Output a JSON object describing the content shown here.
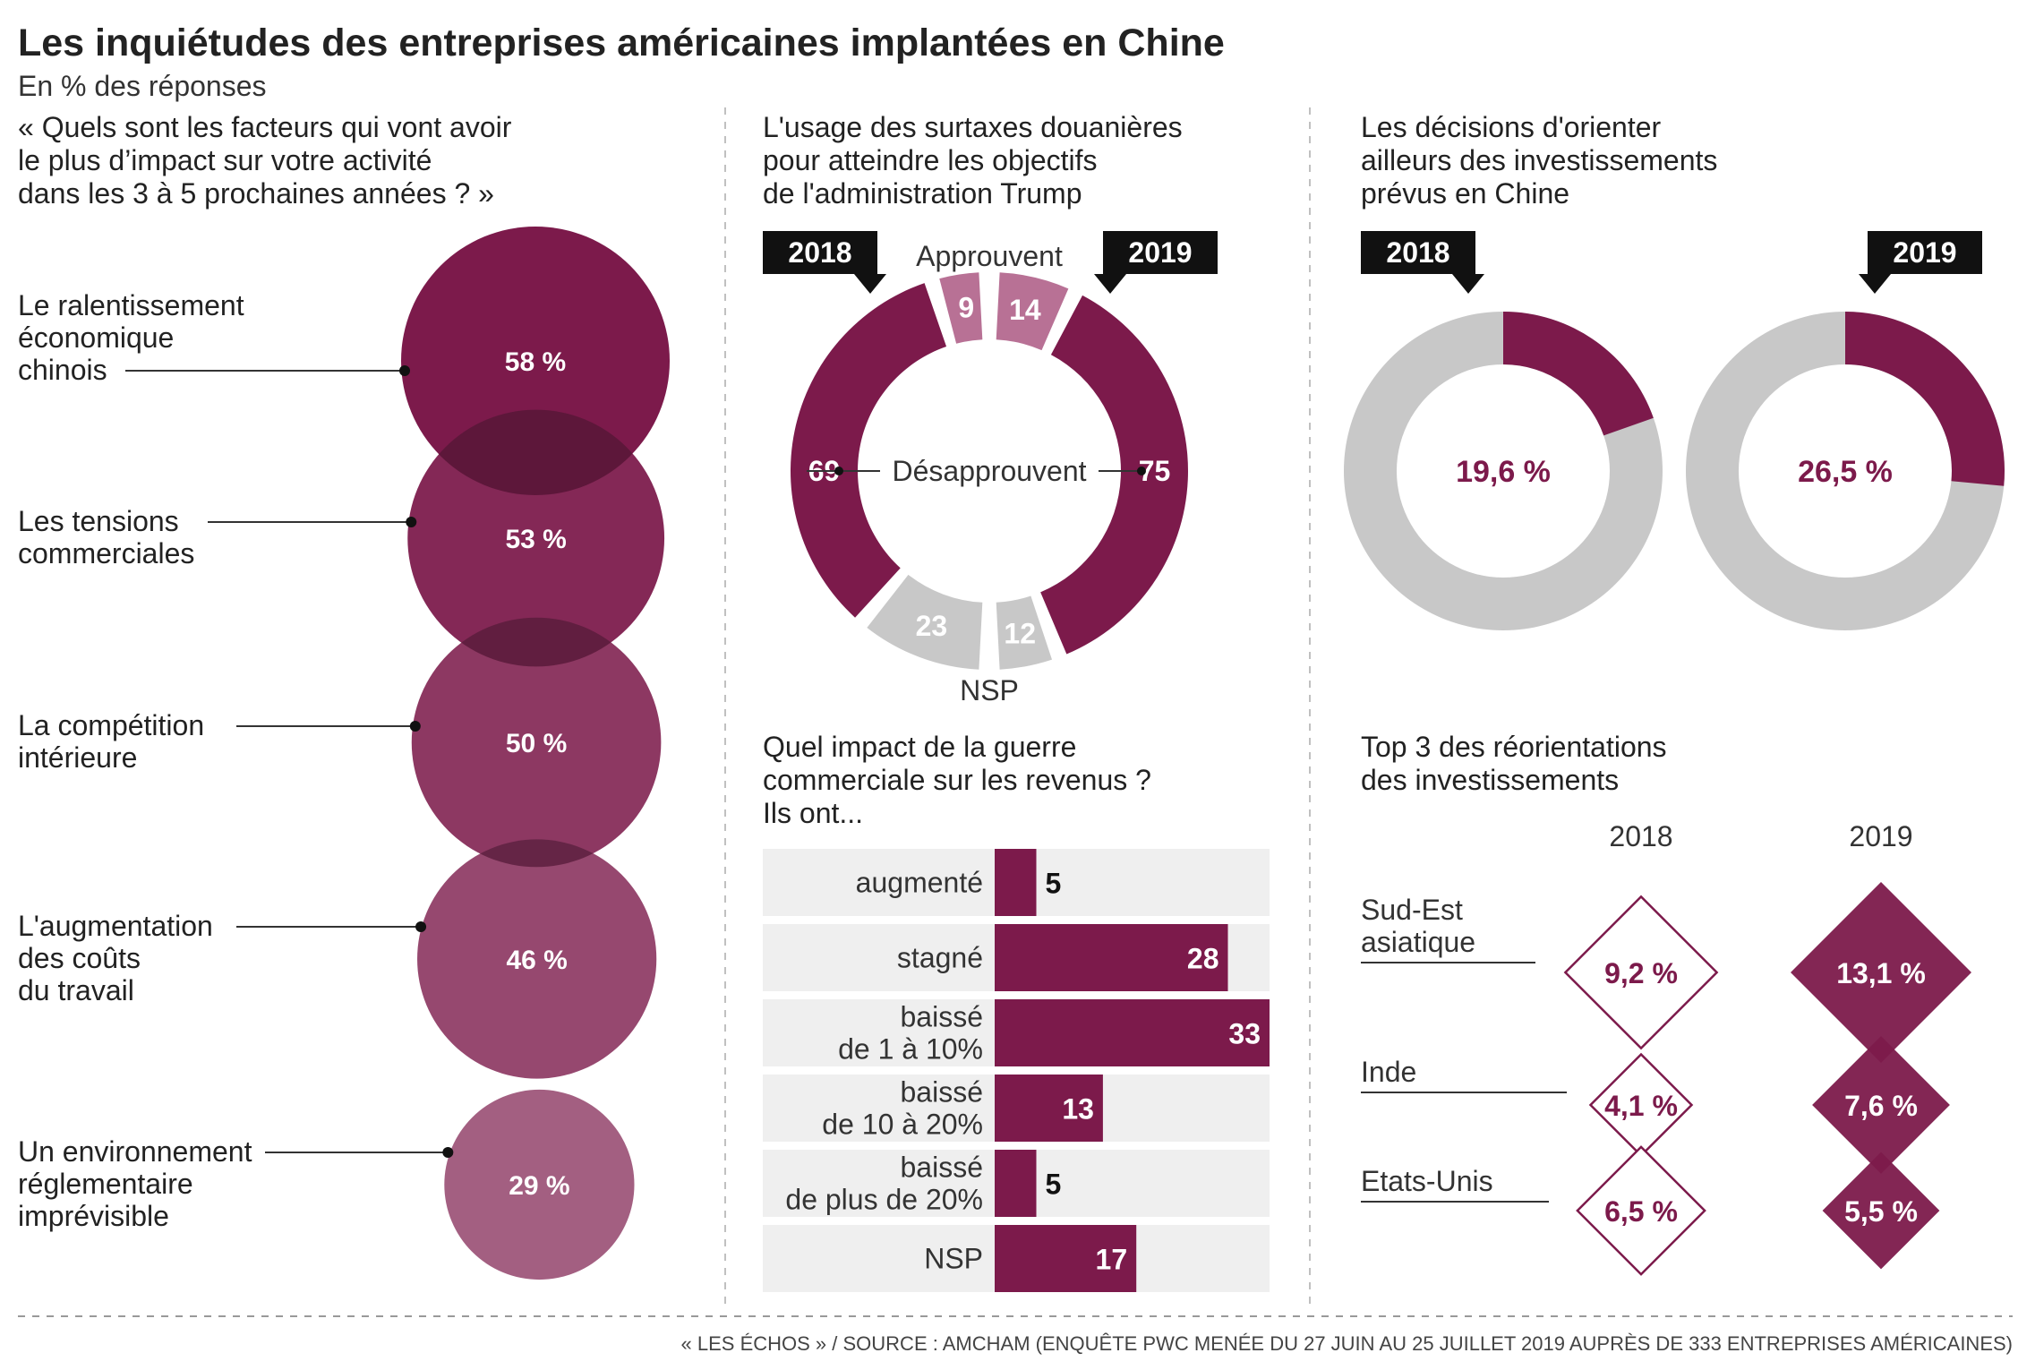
{
  "title": "Les inquiétudes des entreprises américaines implantées en Chine",
  "subtitle": "En % des réponses",
  "source": "« LES ÉCHOS » / SOURCE : AMCHAM (ENQUÊTE PWC MENÉE DU 27 JUIN AU 25 JUILLET 2019 AUPRÈS DE 333 ENTREPRISES AMÉRICAINES)",
  "colors": {
    "wine": "#7c1a4b",
    "pink": "#b87195",
    "gray": "#c8c8c8",
    "light_gray": "#efefef",
    "ink": "#222222"
  },
  "chart_data": [
    {
      "type": "bubble",
      "title": "« Quels sont les facteurs qui vont avoir le plus d’impact sur votre activité dans les 3 à 5 prochaines années ? »",
      "title_lines": [
        "« Quels sont les facteurs qui vont avoir",
        "le plus d’impact sur votre activité",
        "dans les 3 à 5 prochaines années ? »"
      ],
      "unit": "%",
      "items": [
        {
          "label_lines": [
            "Le ralentissement",
            "économique",
            "chinois"
          ],
          "value": 58,
          "value_label": "58 %"
        },
        {
          "label_lines": [
            "Les tensions",
            "commerciales"
          ],
          "value": 53,
          "value_label": "53 %"
        },
        {
          "label_lines": [
            "La compétition",
            "intérieure"
          ],
          "value": 50,
          "value_label": "50 %"
        },
        {
          "label_lines": [
            "L'augmentation",
            "des coûts",
            "du travail"
          ],
          "value": 46,
          "value_label": "46 %"
        },
        {
          "label_lines": [
            "Un environnement",
            "réglementaire",
            "imprévisible"
          ],
          "value": 29,
          "value_label": "29 %"
        }
      ]
    },
    {
      "type": "pie",
      "title": "L'usage des surtaxes douanières pour atteindre les objectifs de l'administration Trump",
      "title_lines": [
        "L'usage des surtaxes douanières",
        "pour atteindre les objectifs",
        "de l'administration Trump"
      ],
      "halves": [
        {
          "year": "2018",
          "side": "left",
          "approve": 9,
          "disapprove": 69,
          "nsp": 23
        },
        {
          "year": "2019",
          "side": "right",
          "approve": 14,
          "disapprove": 75,
          "nsp": 12
        }
      ],
      "labels": {
        "approve": "Approuvent",
        "disapprove": "Désapprouvent",
        "nsp": "NSP"
      }
    },
    {
      "type": "pie",
      "title": "Les décisions d'orienter ailleurs des investissements prévus en Chine",
      "title_lines": [
        "Les décisions d'orienter",
        "ailleurs des investissements",
        "prévus en Chine"
      ],
      "series": [
        {
          "year": "2018",
          "value": 19.6,
          "value_label": "19,6 %"
        },
        {
          "year": "2019",
          "value": 26.5,
          "value_label": "26,5 %"
        }
      ]
    },
    {
      "type": "bar",
      "orientation": "horizontal",
      "title": "Quel impact de la guerre commerciale sur les revenus ? Ils ont...",
      "title_lines": [
        "Quel impact de la guerre",
        "commerciale sur les revenus ?",
        "Ils ont..."
      ],
      "categories": [
        "augmenté",
        "stagné",
        "baissé de 1 à 10%",
        "baissé de 10 à 20%",
        "baissé de plus de 20%",
        "NSP"
      ],
      "category_lines": [
        [
          "augmenté"
        ],
        [
          "stagné"
        ],
        [
          "baissé",
          "de 1 à 10%"
        ],
        [
          "baissé",
          "de 10 à 20%"
        ],
        [
          "baissé",
          "de plus de 20%"
        ],
        [
          "NSP"
        ]
      ],
      "values": [
        5,
        28,
        33,
        13,
        5,
        17
      ],
      "value_labels": [
        "5",
        "28",
        "33",
        "13",
        "5",
        "17"
      ],
      "xlim": [
        0,
        33
      ]
    },
    {
      "type": "diamond",
      "title": "Top 3 des réorientations des investissements",
      "title_lines": [
        "Top 3 des réorientations",
        "des investissements"
      ],
      "years": [
        "2018",
        "2019"
      ],
      "categories": [
        "Sud-Est asiatique",
        "Inde",
        "Etats-Unis"
      ],
      "category_lines": [
        [
          "Sud-Est",
          "asiatique"
        ],
        [
          "Inde"
        ],
        [
          "Etats-Unis"
        ]
      ],
      "series": [
        {
          "name": "2018",
          "values": [
            9.2,
            4.1,
            6.5
          ],
          "value_labels": [
            "9,2 %",
            "4,1 %",
            "6,5 %"
          ]
        },
        {
          "name": "2019",
          "values": [
            13.1,
            7.6,
            5.5
          ],
          "value_labels": [
            "13,1 %",
            "7,6 %",
            "5,5 %"
          ]
        }
      ]
    }
  ]
}
